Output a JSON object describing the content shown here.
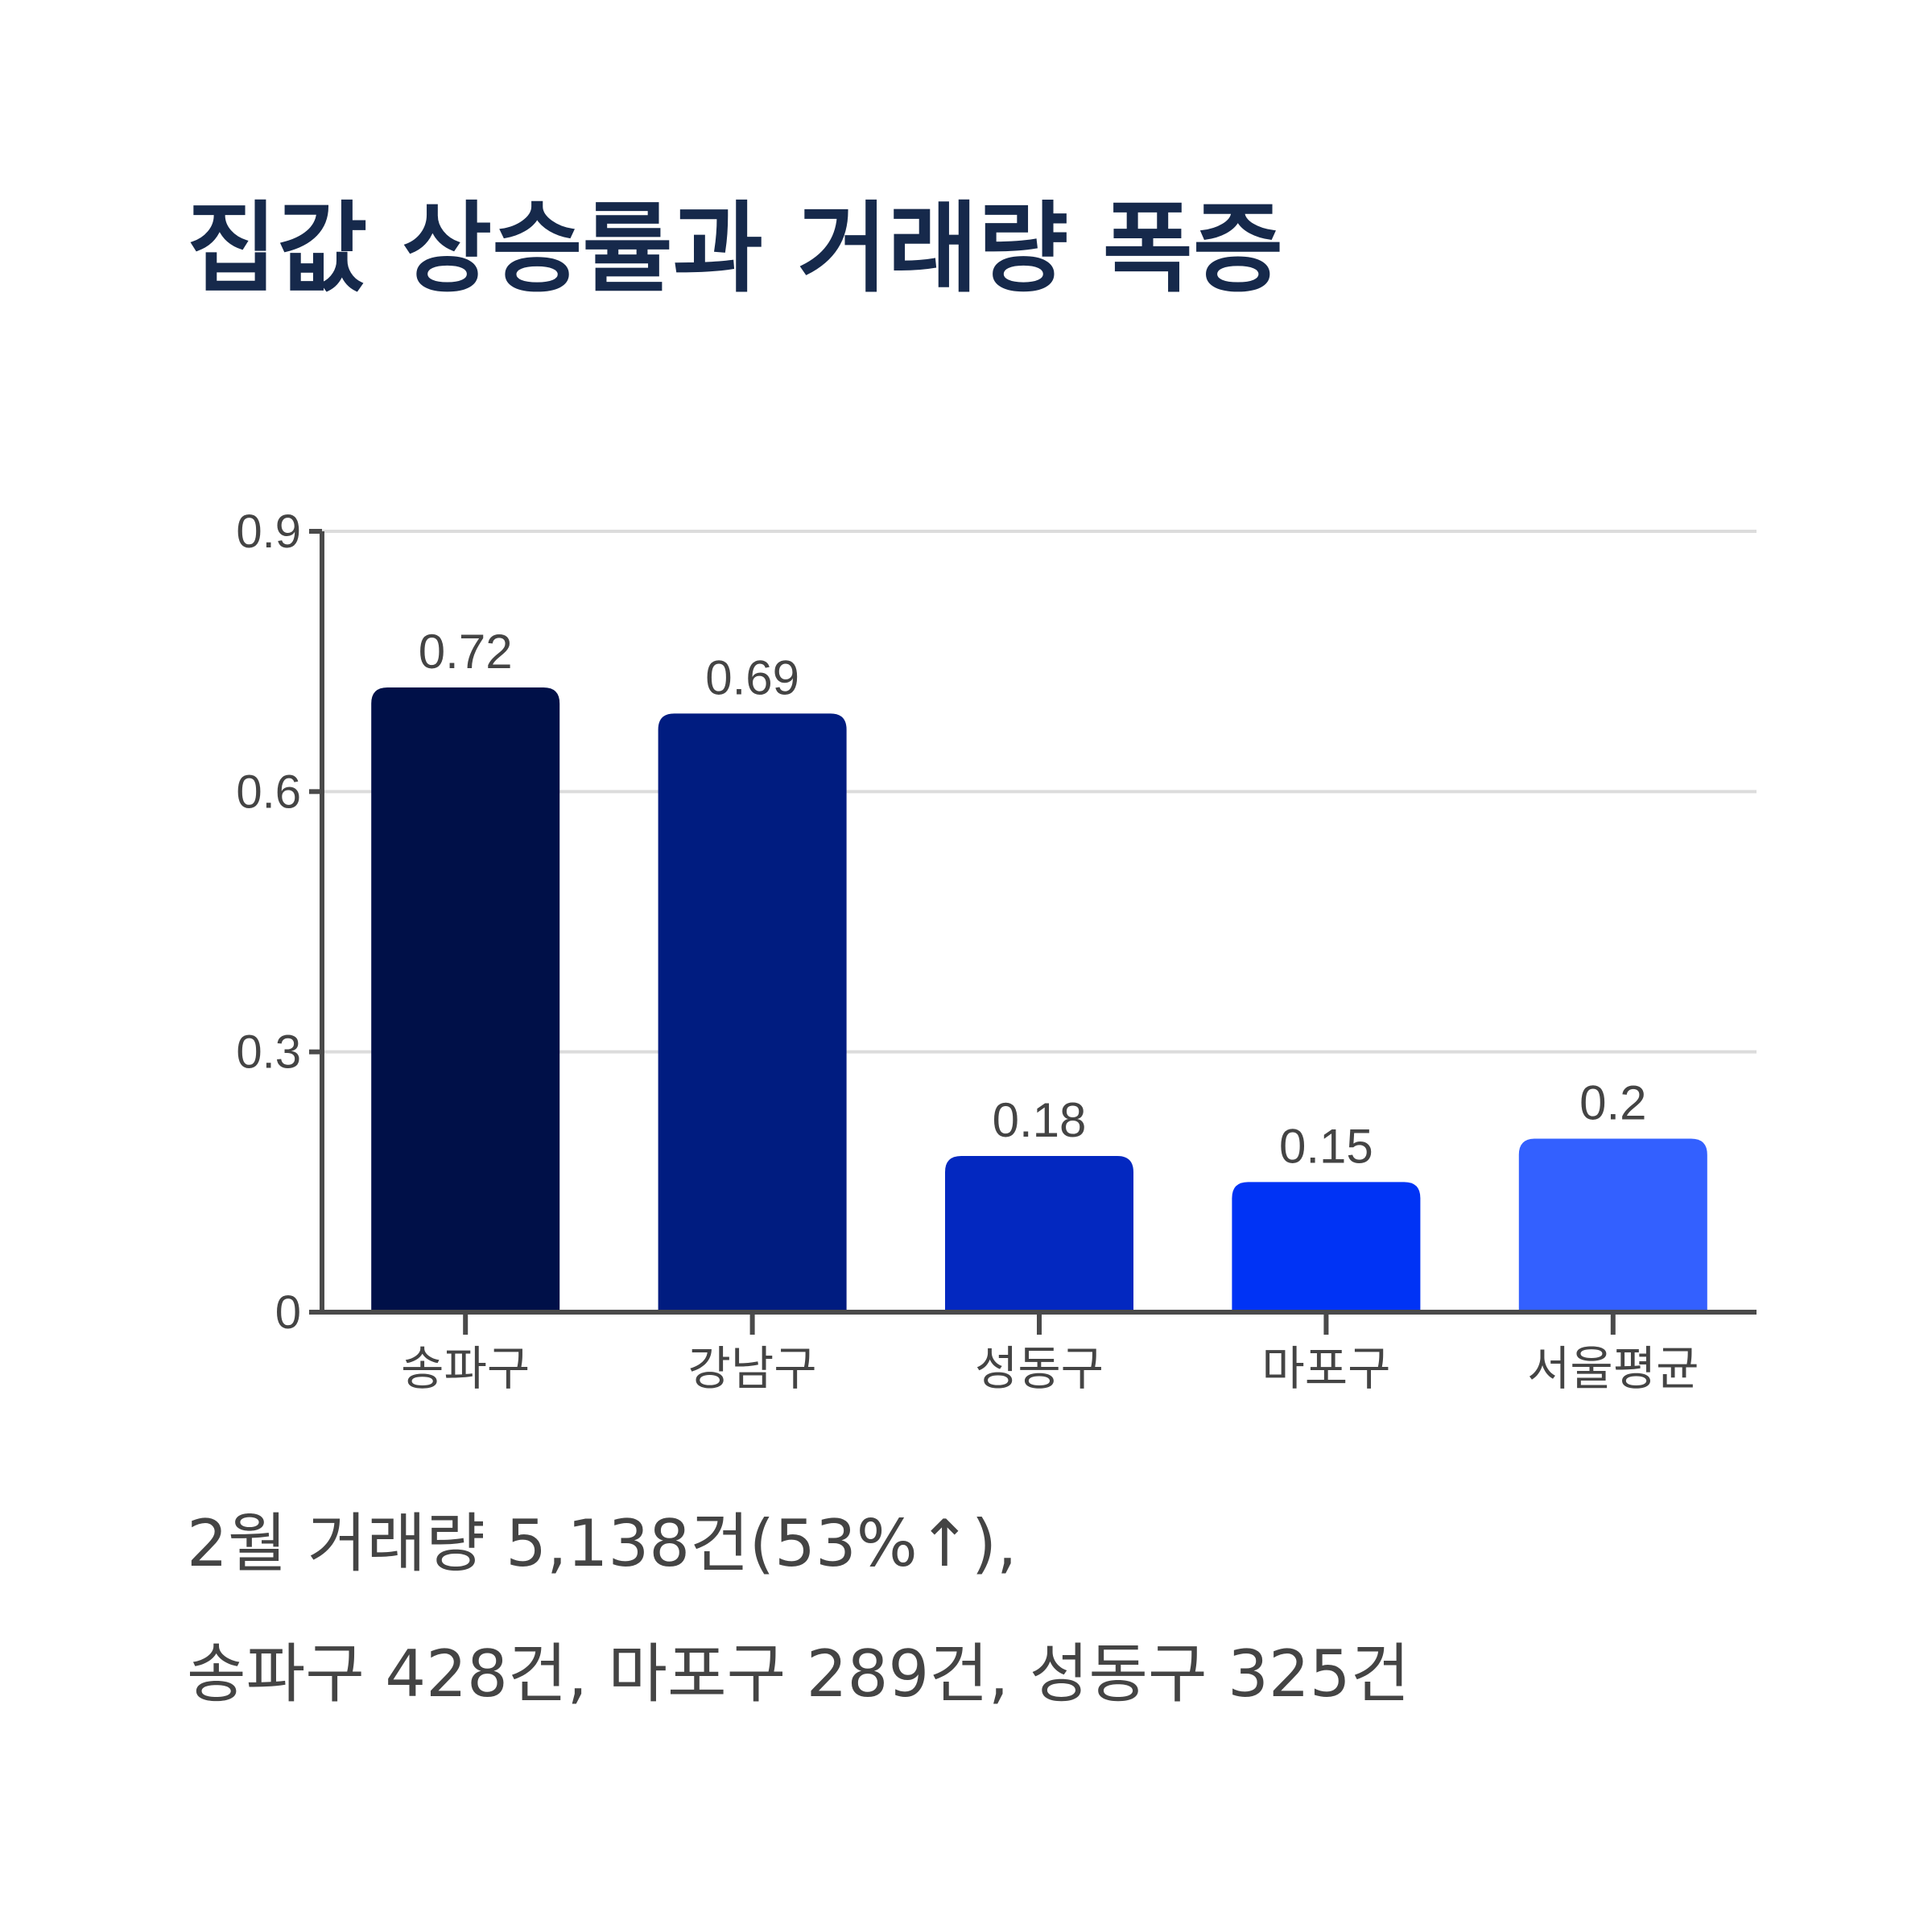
{
  "title": "집값 상승률과 거래량 폭증",
  "caption": {
    "line1": "2월 거래량 5,138건(53%↑),",
    "line2": "송파구 428건, 마포구 289건, 성동구 325건"
  },
  "chart_data": {
    "type": "bar",
    "title": "",
    "xlabel": "",
    "ylabel": "",
    "categories": [
      "송파구",
      "강남구",
      "성동구",
      "마포구",
      "서울평균"
    ],
    "values": [
      0.72,
      0.69,
      0.18,
      0.15,
      0.2
    ],
    "value_labels": [
      "0.72",
      "0.69",
      "0.18",
      "0.15",
      "0.2"
    ],
    "colors": [
      "#001048",
      "#001c80",
      "#0328c0",
      "#0033f5",
      "#3360ff"
    ],
    "ylim": [
      0,
      0.9
    ],
    "yticks": [
      0,
      0.3,
      0.6,
      0.9
    ],
    "ytick_labels": [
      "0",
      "0.3",
      "0.6",
      "0.9"
    ],
    "grid": true,
    "legend": "none"
  }
}
